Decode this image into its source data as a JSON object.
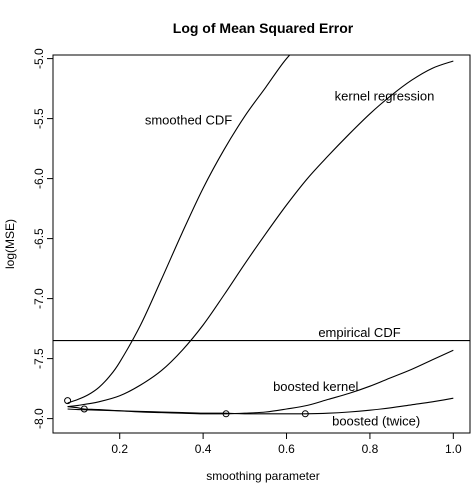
{
  "chart_data": {
    "type": "line",
    "title": "Log of Mean Squared Error",
    "xlabel": "smoothing parameter",
    "ylabel": "log(MSE)",
    "xlim": [
      0.04,
      1.04
    ],
    "ylim": [
      -8.12,
      -4.97
    ],
    "xticks": [
      0.2,
      0.4,
      0.6,
      0.8,
      1.0
    ],
    "xtick_labels": [
      "0.2",
      "0.4",
      "0.6",
      "0.8",
      "1.0"
    ],
    "yticks": [
      -5.0,
      -5.5,
      -6.0,
      -6.5,
      -7.0,
      -7.5,
      -8.0
    ],
    "ytick_labels": [
      "-5.0",
      "-5.5",
      "-6.0",
      "-6.5",
      "-7.0",
      "-7.5",
      "-8.0"
    ],
    "grid": false,
    "series": [
      {
        "name": "smoothed CDF",
        "color": "#000000",
        "x": [
          0.075,
          0.1,
          0.125,
          0.15,
          0.175,
          0.2,
          0.25,
          0.3,
          0.35,
          0.4,
          0.45,
          0.5,
          0.55,
          0.6,
          0.65,
          0.7
        ],
        "y": [
          -7.87,
          -7.84,
          -7.8,
          -7.74,
          -7.65,
          -7.53,
          -7.22,
          -6.84,
          -6.45,
          -6.08,
          -5.76,
          -5.48,
          -5.24,
          -5.0,
          -4.83,
          -4.7
        ]
      },
      {
        "name": "kernel regression",
        "color": "#000000",
        "x": [
          0.075,
          0.1,
          0.15,
          0.2,
          0.25,
          0.3,
          0.35,
          0.4,
          0.45,
          0.5,
          0.55,
          0.6,
          0.65,
          0.7,
          0.75,
          0.8,
          0.85,
          0.9,
          0.95,
          1.0
        ],
        "y": [
          -7.9,
          -7.89,
          -7.86,
          -7.81,
          -7.72,
          -7.6,
          -7.43,
          -7.22,
          -6.97,
          -6.71,
          -6.46,
          -6.22,
          -6.0,
          -5.81,
          -5.63,
          -5.46,
          -5.31,
          -5.18,
          -5.08,
          -5.02
        ]
      },
      {
        "name": "empirical CDF",
        "color": "#000000",
        "x": [
          0.04,
          1.04
        ],
        "y": [
          -7.35,
          -7.35
        ]
      },
      {
        "name": "boosted kernel",
        "color": "#000000",
        "x": [
          0.075,
          0.1,
          0.115,
          0.15,
          0.2,
          0.25,
          0.3,
          0.35,
          0.4,
          0.455,
          0.5,
          0.55,
          0.6,
          0.65,
          0.7,
          0.75,
          0.8,
          0.85,
          0.9,
          0.95,
          1.0
        ],
        "y": [
          -7.9,
          -7.91,
          -7.92,
          -7.925,
          -7.935,
          -7.945,
          -7.95,
          -7.955,
          -7.96,
          -7.96,
          -7.955,
          -7.945,
          -7.92,
          -7.89,
          -7.84,
          -7.79,
          -7.73,
          -7.66,
          -7.59,
          -7.51,
          -7.43
        ]
      },
      {
        "name": "boosted (twice)",
        "color": "#000000",
        "x": [
          0.075,
          0.1,
          0.15,
          0.2,
          0.25,
          0.3,
          0.35,
          0.4,
          0.45,
          0.5,
          0.55,
          0.6,
          0.645,
          0.7,
          0.75,
          0.8,
          0.85,
          0.9,
          0.95,
          1.0
        ],
        "y": [
          -7.92,
          -7.925,
          -7.93,
          -7.935,
          -7.94,
          -7.945,
          -7.95,
          -7.955,
          -7.955,
          -7.96,
          -7.96,
          -7.96,
          -7.96,
          -7.955,
          -7.945,
          -7.93,
          -7.91,
          -7.885,
          -7.86,
          -7.83
        ]
      }
    ],
    "markers": [
      {
        "x": 0.075,
        "y": -7.85
      },
      {
        "x": 0.115,
        "y": -7.92
      },
      {
        "x": 0.455,
        "y": -7.96
      },
      {
        "x": 0.645,
        "y": -7.96
      }
    ],
    "annotations": [
      {
        "text": "smoothed CDF",
        "x": 0.365,
        "y": -5.52
      },
      {
        "text": "kernel regression",
        "x": 0.835,
        "y": -5.32
      },
      {
        "text": "empirical CDF",
        "x": 0.775,
        "y": -7.29
      },
      {
        "text": "boosted kernel",
        "x": 0.67,
        "y": -7.74
      },
      {
        "text": "boosted (twice)",
        "x": 0.815,
        "y": -8.03
      }
    ]
  }
}
